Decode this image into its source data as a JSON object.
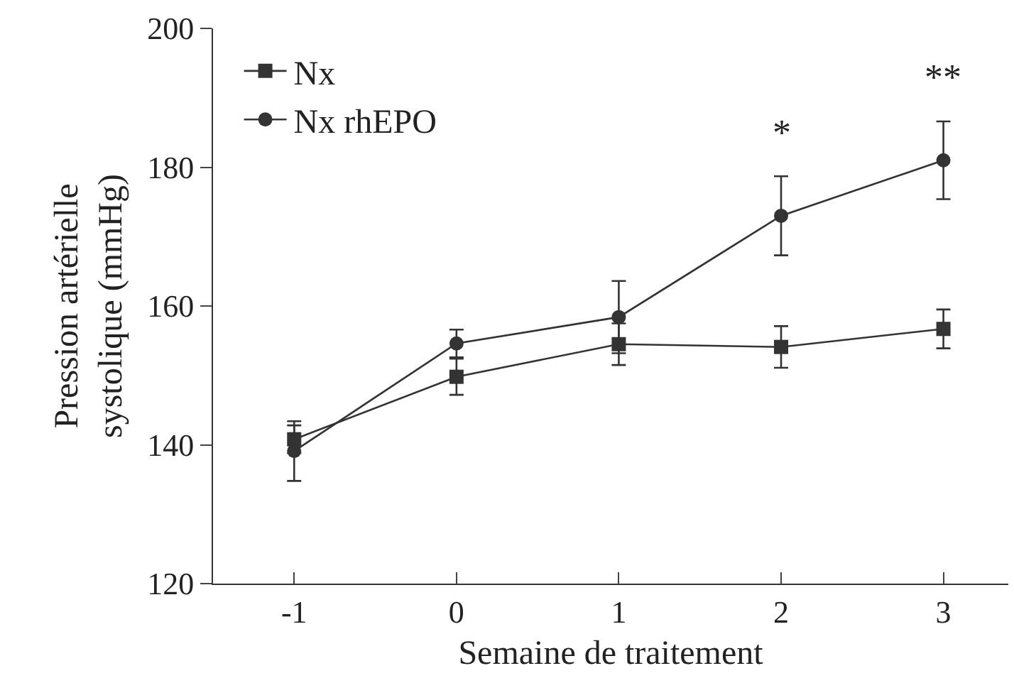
{
  "chart_data": {
    "type": "line",
    "xlabel": "Semaine de traitement",
    "ylabel": "Pression artérielle\nsystolique (mmHg)",
    "x": [
      -1,
      0,
      1,
      2,
      3
    ],
    "xlim": [
      -1.5,
      3.4
    ],
    "xticks": [
      -1,
      0,
      1,
      2,
      3
    ],
    "ylim": [
      120,
      200
    ],
    "yticks": [
      120,
      140,
      160,
      180,
      200
    ],
    "grid": false,
    "legend": "top left",
    "line_style": "solid",
    "series": [
      {
        "name": "Nx",
        "color": "#333333",
        "marker": "square",
        "values": [
          140.8,
          149.8,
          154.5,
          154.1,
          156.7
        ],
        "errors": [
          2,
          2.6,
          3,
          3,
          2.8
        ]
      },
      {
        "name": "Nx rhEPO",
        "color": "#333333",
        "marker": "circle",
        "values": [
          139.1,
          154.6,
          158.4,
          173,
          181
        ],
        "errors": [
          4.3,
          2,
          5.2,
          5.7,
          5.6
        ]
      }
    ],
    "annotations": [
      "*",
      "**"
    ]
  }
}
